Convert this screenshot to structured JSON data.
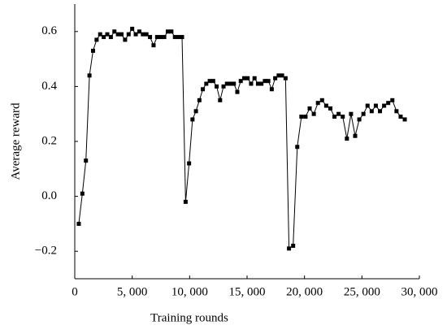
{
  "chart_data": {
    "type": "line",
    "x_label": "Training rounds",
    "y_label": "Average reward",
    "color": "#000000",
    "x": [
      350,
      660,
      970,
      1280,
      1590,
      1900,
      2210,
      2520,
      2830,
      3140,
      3450,
      3760,
      4070,
      4380,
      4690,
      5000,
      5310,
      5620,
      5930,
      6240,
      6550,
      6860,
      7170,
      7480,
      7790,
      8100,
      8410,
      8720,
      9030,
      9340,
      9650,
      9950,
      10250,
      10550,
      10850,
      11150,
      11450,
      11750,
      12050,
      12350,
      12650,
      12950,
      13250,
      13550,
      13850,
      14150,
      14450,
      14750,
      15050,
      15350,
      15650,
      15950,
      16250,
      16550,
      16850,
      17150,
      17450,
      17750,
      18050,
      18350,
      18650,
      19010,
      19370,
      19730,
      20090,
      20450,
      20810,
      21170,
      21530,
      21890,
      22250,
      22610,
      22970,
      23330,
      23690,
      24050,
      24410,
      24770,
      25130,
      25490,
      25850,
      26210,
      26570,
      26930,
      27290,
      27650,
      28010,
      28370,
      28730
    ],
    "values": [
      -0.1,
      0.01,
      0.13,
      0.44,
      0.53,
      0.57,
      0.59,
      0.58,
      0.59,
      0.58,
      0.6,
      0.59,
      0.59,
      0.57,
      0.59,
      0.61,
      0.59,
      0.6,
      0.59,
      0.59,
      0.58,
      0.55,
      0.58,
      0.58,
      0.58,
      0.6,
      0.6,
      0.58,
      0.58,
      0.58,
      -0.02,
      0.12,
      0.28,
      0.31,
      0.35,
      0.39,
      0.41,
      0.42,
      0.42,
      0.4,
      0.35,
      0.4,
      0.41,
      0.41,
      0.41,
      0.38,
      0.42,
      0.43,
      0.43,
      0.41,
      0.43,
      0.41,
      0.41,
      0.42,
      0.42,
      0.39,
      0.43,
      0.44,
      0.44,
      0.43,
      -0.19,
      -0.18,
      0.18,
      0.29,
      0.29,
      0.32,
      0.3,
      0.34,
      0.35,
      0.33,
      0.32,
      0.29,
      0.3,
      0.29,
      0.21,
      0.3,
      0.22,
      0.28,
      0.3,
      0.33,
      0.31,
      0.33,
      0.31,
      0.33,
      0.34,
      0.35,
      0.31,
      0.29,
      0.28
    ],
    "xlim": [
      0,
      30000
    ],
    "xticks": [
      0,
      {
        "value": 5000,
        "label": "5, 000"
      },
      {
        "value": 10000,
        "label": "10, 000"
      },
      {
        "value": 15000,
        "label": "15, 000"
      },
      {
        "value": 20000,
        "label": "20, 000"
      },
      {
        "value": 25000,
        "label": "25, 000"
      },
      {
        "value": 30000,
        "label": "30, 000"
      }
    ],
    "ylim": [
      -0.3,
      0.7
    ],
    "yticks": [
      {
        "value": -0.2,
        "label": "−0.2"
      },
      {
        "value": 0,
        "label": "0.0"
      },
      0.2,
      0.4,
      0.6
    ],
    "grid": false
  }
}
